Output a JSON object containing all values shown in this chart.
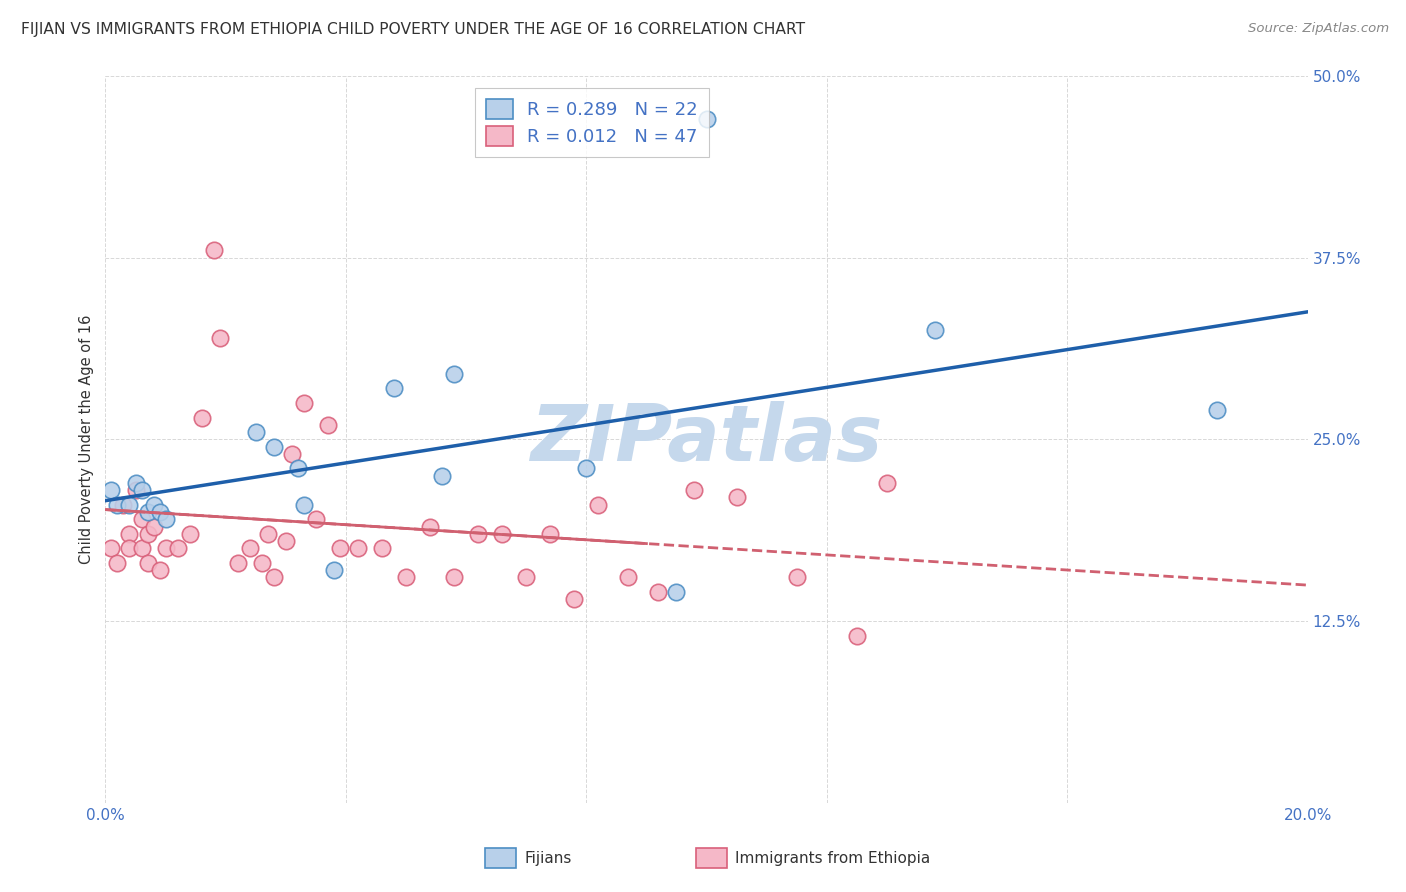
{
  "title": "FIJIAN VS IMMIGRANTS FROM ETHIOPIA CHILD POVERTY UNDER THE AGE OF 16 CORRELATION CHART",
  "source": "Source: ZipAtlas.com",
  "ylabel": "Child Poverty Under the Age of 16",
  "xlim": [
    0.0,
    0.2
  ],
  "ylim": [
    0.0,
    0.5
  ],
  "yticks": [
    0.0,
    0.125,
    0.25,
    0.375,
    0.5
  ],
  "ytick_labels": [
    "",
    "12.5%",
    "25.0%",
    "37.5%",
    "50.0%"
  ],
  "xticks": [
    0.0,
    0.04,
    0.08,
    0.12,
    0.16,
    0.2
  ],
  "xtick_labels_bottom": [
    "0.0%",
    "",
    "",
    "",
    "",
    "20.0%"
  ],
  "legend_fijian_R": "0.289",
  "legend_fijian_N": "22",
  "legend_ethiopia_R": "0.012",
  "legend_ethiopia_N": "47",
  "fijian_face_color": "#b8d0ea",
  "fijian_edge_color": "#4d8ec4",
  "ethiopia_face_color": "#f5b8c8",
  "ethiopia_edge_color": "#d9607a",
  "fijian_line_color": "#1e5faa",
  "ethiopia_line_color": "#d06070",
  "watermark_color": "#c5d8ec",
  "title_color": "#333333",
  "axis_label_color": "#4472c4",
  "background_color": "#ffffff",
  "grid_color": "#d8d8d8",
  "legend_R_color": "#4472c4",
  "fijian_x": [
    0.001,
    0.002,
    0.004,
    0.005,
    0.006,
    0.007,
    0.008,
    0.009,
    0.01,
    0.025,
    0.028,
    0.032,
    0.033,
    0.038,
    0.048,
    0.056,
    0.058,
    0.08,
    0.095,
    0.1,
    0.138,
    0.185
  ],
  "fijian_y": [
    0.215,
    0.205,
    0.205,
    0.22,
    0.215,
    0.2,
    0.205,
    0.2,
    0.195,
    0.255,
    0.245,
    0.23,
    0.205,
    0.16,
    0.285,
    0.225,
    0.295,
    0.23,
    0.145,
    0.47,
    0.325,
    0.27
  ],
  "ethiopia_x": [
    0.001,
    0.002,
    0.003,
    0.004,
    0.004,
    0.005,
    0.006,
    0.006,
    0.007,
    0.007,
    0.008,
    0.009,
    0.01,
    0.012,
    0.014,
    0.016,
    0.018,
    0.019,
    0.022,
    0.024,
    0.026,
    0.027,
    0.028,
    0.03,
    0.031,
    0.033,
    0.035,
    0.037,
    0.039,
    0.042,
    0.046,
    0.05,
    0.054,
    0.058,
    0.062,
    0.066,
    0.07,
    0.074,
    0.078,
    0.082,
    0.087,
    0.092,
    0.098,
    0.105,
    0.115,
    0.125,
    0.13
  ],
  "ethiopia_y": [
    0.175,
    0.165,
    0.205,
    0.185,
    0.175,
    0.215,
    0.195,
    0.175,
    0.185,
    0.165,
    0.19,
    0.16,
    0.175,
    0.175,
    0.185,
    0.265,
    0.38,
    0.32,
    0.165,
    0.175,
    0.165,
    0.185,
    0.155,
    0.18,
    0.24,
    0.275,
    0.195,
    0.26,
    0.175,
    0.175,
    0.175,
    0.155,
    0.19,
    0.155,
    0.185,
    0.185,
    0.155,
    0.185,
    0.14,
    0.205,
    0.155,
    0.145,
    0.215,
    0.21,
    0.155,
    0.115,
    0.22
  ]
}
